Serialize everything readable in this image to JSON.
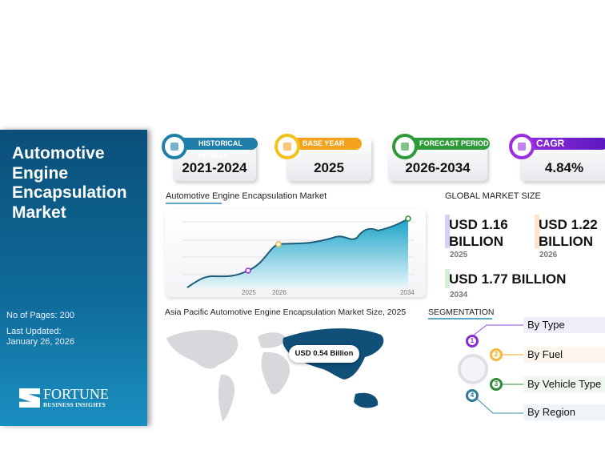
{
  "sidebar": {
    "title": "Automotive Engine Encapsulation Market",
    "pages": "No of Pages: 200",
    "updated_label": "Last Updated:",
    "updated_date": "January 26, 2026",
    "logo_main": "FORTUNE",
    "logo_sub": "BUSINESS INSIGHTS"
  },
  "cards": [
    {
      "label": "HISTORICAL PERIOD",
      "value": "2021-2024",
      "color": "#1f7fa8"
    },
    {
      "label": "BASE YEAR",
      "value": "2025",
      "color": "#f4a21c"
    },
    {
      "label": "FORECAST PERIOD",
      "value": "2026-2034",
      "color": "#2e9a3a"
    },
    {
      "label": "CAGR",
      "value": "4.84%",
      "color": "#7a22d0"
    }
  ],
  "chart_title": "Automotive Engine Encapsulation Market",
  "chart_data": {
    "type": "area",
    "title": "Automotive Engine Encapsulation Market",
    "x_ticks": [
      "2025",
      "2026",
      "2034"
    ],
    "markers": [
      {
        "x": "2025",
        "value": 1.16
      },
      {
        "x": "2026",
        "value": 1.22
      },
      {
        "x": "2034",
        "value": 1.77
      }
    ],
    "ylabel": "",
    "xlabel": ""
  },
  "global": {
    "title": "GLOBAL MARKET SIZE",
    "items": [
      {
        "value": "USD 1.16 BILLION",
        "year": "2025"
      },
      {
        "value": "USD 1.22 BILLION",
        "year": "2026"
      },
      {
        "value": "USD 1.77 BILLION",
        "year": "2034"
      }
    ]
  },
  "map": {
    "title": "Asia Pacific Automotive Engine Encapsulation Market Size, 2025",
    "callout": "USD 0.54 Billion"
  },
  "segmentation": {
    "title": "SEGMENTATION",
    "items": [
      {
        "n": "1",
        "label": "By Type"
      },
      {
        "n": "2",
        "label": "By Fuel"
      },
      {
        "n": "3",
        "label": "By Vehicle Type"
      },
      {
        "n": "4",
        "label": "By Region"
      }
    ]
  }
}
